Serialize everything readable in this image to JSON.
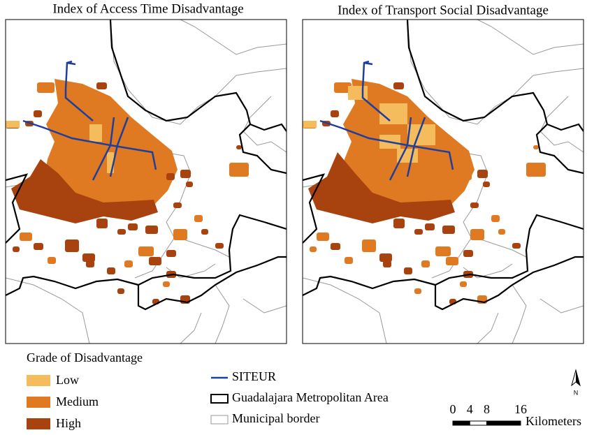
{
  "maps": [
    {
      "title": "Index of Access Time Disadvantage"
    },
    {
      "title": "Index of Transport Social Disadvantage"
    }
  ],
  "legend": {
    "title": "Grade of Disadvantage",
    "grades": [
      {
        "label": "Low",
        "color": "#f5bc5e"
      },
      {
        "label": "Medium",
        "color": "#df7a23"
      },
      {
        "label": "High",
        "color": "#a8420f"
      }
    ],
    "lines": [
      {
        "label": "SITEUR",
        "color": "#1f3f9a"
      },
      {
        "label": "Guadalajara Metropolitan Area",
        "color": "#000000"
      },
      {
        "label": "Municipal border",
        "color": "#999999"
      }
    ]
  },
  "scale": {
    "ticks": [
      0,
      4,
      8,
      16
    ],
    "unit": "Kilometers"
  },
  "north": "N"
}
